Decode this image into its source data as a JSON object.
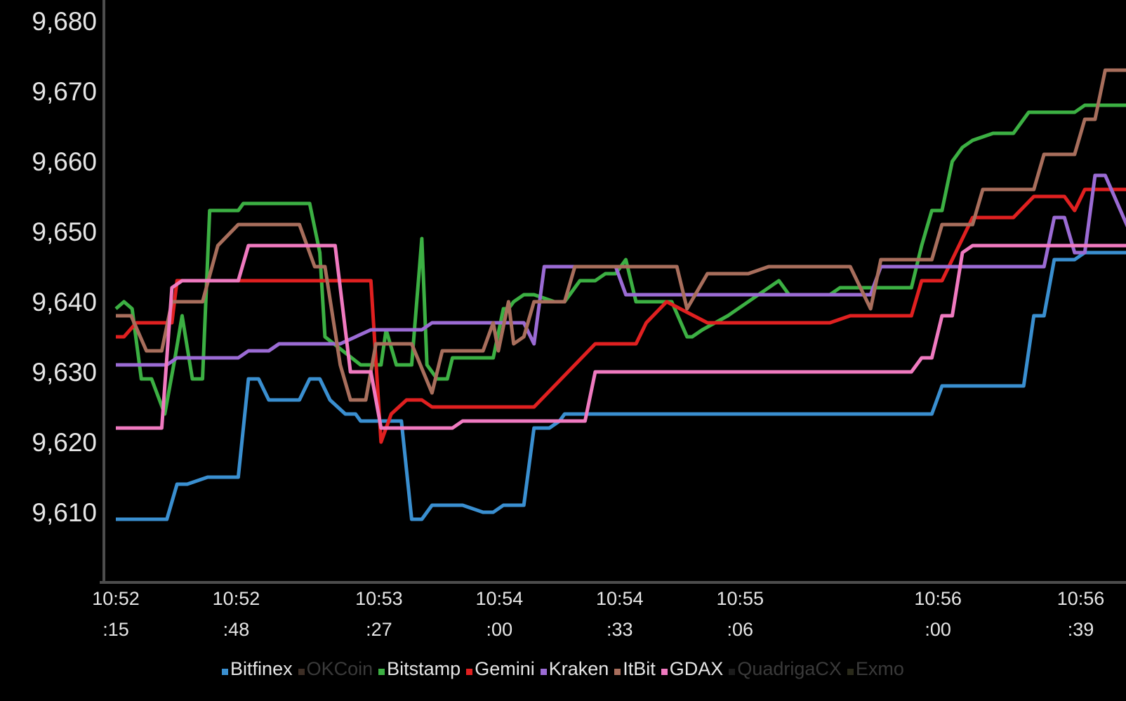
{
  "chart_data": {
    "type": "line",
    "background": "#000000",
    "axis_color": "#4d4d4d",
    "tick_label_color": "#e6e6e6",
    "ylim": [
      9600,
      9681
    ],
    "xlim": [
      0,
      1
    ],
    "y_ticks": [
      {
        "value": 9610,
        "label": "9,610"
      },
      {
        "value": 9620,
        "label": "9,620"
      },
      {
        "value": 9630,
        "label": "9,630"
      },
      {
        "value": 9640,
        "label": "9,640"
      },
      {
        "value": 9650,
        "label": "9,650"
      },
      {
        "value": 9660,
        "label": "9,660"
      },
      {
        "value": 9670,
        "label": "9,670"
      },
      {
        "value": 9680,
        "label": "9,680"
      }
    ],
    "x_ticks": [
      {
        "value": 0.0,
        "line1": "10:52",
        "line2": ":15"
      },
      {
        "value": 0.118,
        "line1": "10:52",
        "line2": ":48"
      },
      {
        "value": 0.258,
        "line1": "10:53",
        "line2": ":27"
      },
      {
        "value": 0.376,
        "line1": "10:54",
        "line2": ":00"
      },
      {
        "value": 0.494,
        "line1": "10:54",
        "line2": ":33"
      },
      {
        "value": 0.612,
        "line1": "10:55",
        "line2": ":06"
      },
      {
        "value": 0.806,
        "line1": "10:56",
        "line2": ":00"
      },
      {
        "value": 0.946,
        "line1": "10:56",
        "line2": ":39"
      }
    ],
    "legend_position": "bottom",
    "grid": false,
    "series": [
      {
        "name": "Bitfinex",
        "color": "#3a8fd0",
        "active": true,
        "x": [
          0.0,
          0.05,
          0.06,
          0.07,
          0.09,
          0.12,
          0.13,
          0.14,
          0.15,
          0.18,
          0.19,
          0.2,
          0.21,
          0.225,
          0.235,
          0.24,
          0.26,
          0.28,
          0.29,
          0.3,
          0.31,
          0.32,
          0.33,
          0.34,
          0.36,
          0.37,
          0.38,
          0.39,
          0.4,
          0.41,
          0.425,
          0.435,
          0.44,
          0.48,
          0.485,
          0.5,
          0.52,
          0.6,
          0.7,
          0.8,
          0.81,
          0.84,
          0.88,
          0.89,
          0.9,
          0.91,
          0.92,
          0.94,
          0.95,
          0.96,
          1.0
        ],
        "y": [
          9609,
          9609,
          9614,
          9614,
          9615,
          9615,
          9629,
          9629,
          9626,
          9626,
          9629,
          9629,
          9626,
          9624,
          9624,
          9623,
          9623,
          9623,
          9609,
          9609,
          9611,
          9611,
          9611,
          9611,
          9610,
          9610,
          9611,
          9611,
          9611,
          9622,
          9622,
          9623,
          9624,
          9624,
          9624,
          9624,
          9624,
          9624,
          9624,
          9624,
          9628,
          9628,
          9628,
          9628,
          9638,
          9638,
          9646,
          9646,
          9647,
          9647,
          9647
        ]
      },
      {
        "name": "OKCoin",
        "color": "#3d2e25",
        "active": false,
        "x": [],
        "y": []
      },
      {
        "name": "Bitstamp",
        "color": "#3cb043",
        "active": true,
        "x": [
          0.0,
          0.008,
          0.016,
          0.025,
          0.035,
          0.048,
          0.058,
          0.065,
          0.075,
          0.085,
          0.092,
          0.12,
          0.125,
          0.16,
          0.18,
          0.19,
          0.2,
          0.205,
          0.24,
          0.26,
          0.265,
          0.275,
          0.29,
          0.3,
          0.305,
          0.315,
          0.325,
          0.33,
          0.34,
          0.35,
          0.37,
          0.38,
          0.385,
          0.39,
          0.4,
          0.41,
          0.43,
          0.44,
          0.445,
          0.455,
          0.46,
          0.47,
          0.48,
          0.49,
          0.5,
          0.51,
          0.52,
          0.525,
          0.545,
          0.56,
          0.565,
          0.575,
          0.6,
          0.61,
          0.65,
          0.66,
          0.7,
          0.71,
          0.76,
          0.78,
          0.79,
          0.8,
          0.81,
          0.82,
          0.83,
          0.84,
          0.86,
          0.87,
          0.88,
          0.895,
          0.9,
          0.94,
          0.95,
          0.96,
          1.0
        ],
        "y": [
          9639,
          9640,
          9639,
          9629,
          9629,
          9624,
          9632,
          9638,
          9629,
          9629,
          9653,
          9653,
          9654,
          9654,
          9654,
          9654,
          9647,
          9635,
          9631,
          9631,
          9636,
          9631,
          9631,
          9649,
          9631,
          9629,
          9629,
          9632,
          9632,
          9632,
          9632,
          9639,
          9639,
          9640,
          9641,
          9641,
          9640,
          9640,
          9641,
          9643,
          9643,
          9643,
          9644,
          9644,
          9646,
          9640,
          9640,
          9640,
          9640,
          9635,
          9635,
          9636,
          9638,
          9639,
          9643,
          9641,
          9641,
          9642,
          9642,
          9642,
          9648,
          9653,
          9653,
          9660,
          9662,
          9663,
          9664,
          9664,
          9664,
          9667,
          9667,
          9667,
          9668,
          9668,
          9668
        ]
      },
      {
        "name": "Gemini",
        "color": "#e02020",
        "active": true,
        "x": [
          0.0,
          0.008,
          0.02,
          0.045,
          0.055,
          0.06,
          0.07,
          0.1,
          0.12,
          0.17,
          0.2,
          0.22,
          0.24,
          0.25,
          0.26,
          0.27,
          0.285,
          0.3,
          0.31,
          0.34,
          0.35,
          0.37,
          0.38,
          0.4,
          0.41,
          0.47,
          0.48,
          0.49,
          0.5,
          0.51,
          0.52,
          0.54,
          0.58,
          0.6,
          0.61,
          0.7,
          0.72,
          0.74,
          0.75,
          0.76,
          0.78,
          0.79,
          0.8,
          0.81,
          0.84,
          0.86,
          0.87,
          0.88,
          0.9,
          0.91,
          0.93,
          0.94,
          0.95,
          0.96,
          0.97,
          1.0
        ],
        "y": [
          9635,
          9635,
          9637,
          9637,
          9637,
          9643,
          9643,
          9643,
          9643,
          9643,
          9643,
          9643,
          9643,
          9643,
          9620,
          9624,
          9626,
          9626,
          9625,
          9625,
          9625,
          9625,
          9625,
          9625,
          9625,
          9634,
          9634,
          9634,
          9634,
          9634,
          9637,
          9640,
          9637,
          9637,
          9637,
          9637,
          9638,
          9638,
          9638,
          9638,
          9638,
          9643,
          9643,
          9643,
          9652,
          9652,
          9652,
          9652,
          9655,
          9655,
          9655,
          9653,
          9656,
          9656,
          9656,
          9656
        ]
      },
      {
        "name": "Kraken",
        "color": "#9b6bd4",
        "active": true,
        "x": [
          0.0,
          0.05,
          0.06,
          0.08,
          0.1,
          0.12,
          0.13,
          0.15,
          0.16,
          0.17,
          0.18,
          0.19,
          0.2,
          0.22,
          0.25,
          0.26,
          0.27,
          0.28,
          0.29,
          0.3,
          0.31,
          0.33,
          0.36,
          0.38,
          0.38,
          0.39,
          0.4,
          0.41,
          0.42,
          0.45,
          0.46,
          0.47,
          0.48,
          0.49,
          0.5,
          0.52,
          0.6,
          0.65,
          0.7,
          0.74,
          0.75,
          0.78,
          0.8,
          0.82,
          0.84,
          0.86,
          0.88,
          0.89,
          0.9,
          0.91,
          0.92,
          0.93,
          0.94,
          0.95,
          0.96,
          0.97,
          1.0
        ],
        "y": [
          9631,
          9631,
          9632,
          9632,
          9632,
          9632,
          9633,
          9633,
          9634,
          9634,
          9634,
          9634,
          9634,
          9634,
          9636,
          9636,
          9636,
          9636,
          9636,
          9636,
          9637,
          9637,
          9637,
          9637,
          9637,
          9637,
          9637,
          9634,
          9645,
          9645,
          9645,
          9645,
          9645,
          9645,
          9641,
          9641,
          9641,
          9641,
          9641,
          9641,
          9645,
          9645,
          9645,
          9645,
          9645,
          9645,
          9645,
          9645,
          9645,
          9645,
          9652,
          9652,
          9647,
          9647,
          9658,
          9658,
          9648
        ]
      },
      {
        "name": "ItBit",
        "color": "#a86e5c",
        "active": true,
        "x": [
          0.0,
          0.015,
          0.03,
          0.045,
          0.055,
          0.065,
          0.085,
          0.1,
          0.12,
          0.13,
          0.14,
          0.16,
          0.17,
          0.18,
          0.195,
          0.205,
          0.22,
          0.23,
          0.245,
          0.255,
          0.265,
          0.28,
          0.29,
          0.31,
          0.32,
          0.33,
          0.34,
          0.36,
          0.37,
          0.375,
          0.385,
          0.39,
          0.4,
          0.41,
          0.42,
          0.44,
          0.45,
          0.46,
          0.48,
          0.5,
          0.52,
          0.54,
          0.55,
          0.56,
          0.58,
          0.6,
          0.62,
          0.64,
          0.65,
          0.66,
          0.67,
          0.7,
          0.72,
          0.74,
          0.75,
          0.76,
          0.78,
          0.8,
          0.81,
          0.82,
          0.83,
          0.84,
          0.85,
          0.86,
          0.87,
          0.88,
          0.89,
          0.9,
          0.91,
          0.92,
          0.93,
          0.94,
          0.95,
          0.96,
          0.97,
          0.98,
          1.0
        ],
        "y": [
          9638,
          9638,
          9633,
          9633,
          9640,
          9640,
          9640,
          9648,
          9651,
          9651,
          9651,
          9651,
          9651,
          9651,
          9645,
          9645,
          9631,
          9626,
          9626,
          9634,
          9634,
          9634,
          9634,
          9627,
          9633,
          9633,
          9633,
          9633,
          9637,
          9633,
          9640,
          9634,
          9635,
          9640,
          9640,
          9640,
          9645,
          9645,
          9645,
          9645,
          9645,
          9645,
          9645,
          9639,
          9644,
          9644,
          9644,
          9645,
          9645,
          9645,
          9645,
          9645,
          9645,
          9639,
          9646,
          9646,
          9646,
          9646,
          9651,
          9651,
          9651,
          9651,
          9656,
          9656,
          9656,
          9656,
          9656,
          9656,
          9661,
          9661,
          9661,
          9661,
          9666,
          9666,
          9673,
          9673,
          9673
        ]
      },
      {
        "name": "GDAX",
        "color": "#f07ac0",
        "active": true,
        "x": [
          0.0,
          0.045,
          0.055,
          0.065,
          0.1,
          0.12,
          0.13,
          0.15,
          0.17,
          0.19,
          0.2,
          0.21,
          0.215,
          0.23,
          0.25,
          0.26,
          0.27,
          0.29,
          0.3,
          0.31,
          0.32,
          0.33,
          0.34,
          0.36,
          0.4,
          0.44,
          0.45,
          0.46,
          0.47,
          0.48,
          0.49,
          0.5,
          0.52,
          0.56,
          0.6,
          0.65,
          0.7,
          0.72,
          0.74,
          0.75,
          0.76,
          0.77,
          0.78,
          0.79,
          0.8,
          0.81,
          0.82,
          0.83,
          0.84,
          0.85,
          0.86,
          0.88,
          0.9,
          0.92,
          0.94,
          0.96,
          1.0
        ],
        "y": [
          9622,
          9622,
          9642,
          9643,
          9643,
          9643,
          9648,
          9648,
          9648,
          9648,
          9648,
          9648,
          9648,
          9630,
          9630,
          9622,
          9622,
          9622,
          9622,
          9622,
          9622,
          9622,
          9623,
          9623,
          9623,
          9623,
          9623,
          9623,
          9630,
          9630,
          9630,
          9630,
          9630,
          9630,
          9630,
          9630,
          9630,
          9630,
          9630,
          9630,
          9630,
          9630,
          9630,
          9632,
          9632,
          9638,
          9638,
          9647,
          9648,
          9648,
          9648,
          9648,
          9648,
          9648,
          9648,
          9648,
          9648
        ]
      },
      {
        "name": "QuadrigaCX",
        "color": "#1c1c1c",
        "active": false,
        "x": [],
        "y": []
      },
      {
        "name": "Exmo",
        "color": "#2a2a1a",
        "active": false,
        "x": [],
        "y": []
      }
    ]
  }
}
